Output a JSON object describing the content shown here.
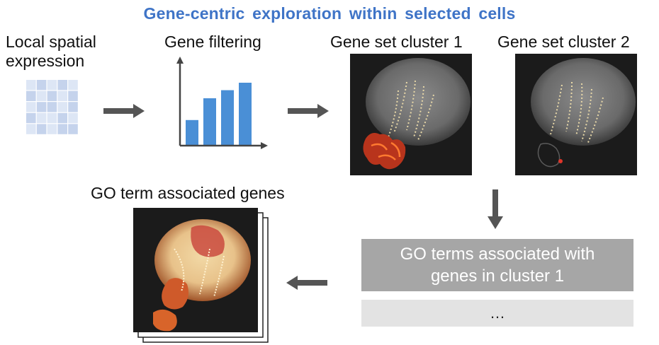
{
  "title": "Gene-centric exploration within selected cells",
  "steps": {
    "local_spatial": "Local spatial expression",
    "local_spatial_line1": "Local spatial",
    "local_spatial_line2": "expression",
    "gene_filtering": "Gene filtering",
    "cluster1": "Gene set cluster 1",
    "cluster2": "Gene set cluster 2",
    "go_associated": "GO term associated genes"
  },
  "go_box": {
    "line1": "GO terms associated with",
    "line2": "genes in cluster 1"
  },
  "ellipsis": "…",
  "chart_data": {
    "type": "bar",
    "categories": [
      "",
      "",
      "",
      ""
    ],
    "values": [
      40,
      75,
      88,
      100
    ],
    "ylim": [
      0,
      125
    ],
    "color": "#4a8fd6"
  },
  "colors": {
    "title": "#3f74c7",
    "arrow": "#555555",
    "grid_light": "#dde6f5",
    "grid_dark": "#c5d3ec",
    "go_box": "#a6a6a6",
    "ellipsis_box": "#e3e3e3"
  }
}
